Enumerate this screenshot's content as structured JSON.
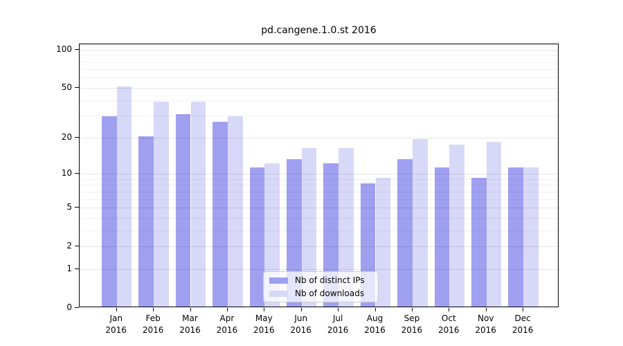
{
  "title": "pd.cangene.1.0.st 2016",
  "chart_data": {
    "type": "bar",
    "title": "pd.cangene.1.0.st 2016",
    "categories": [
      "Jan",
      "Feb",
      "Mar",
      "Apr",
      "May",
      "Jun",
      "Jul",
      "Aug",
      "Sep",
      "Oct",
      "Nov",
      "Dec"
    ],
    "category_year": "2016",
    "series": [
      {
        "name": "Nb of distinct IPs",
        "color": "#a0a0f0",
        "values": [
          29,
          20,
          30,
          26,
          11,
          13,
          12,
          8,
          13,
          11,
          9,
          11
        ]
      },
      {
        "name": "Nb of downloads",
        "color": "#d8d8f8",
        "values": [
          50,
          38,
          38,
          29,
          12,
          16,
          16,
          9,
          19,
          17,
          18,
          11
        ]
      }
    ],
    "xlabel": "",
    "ylabel": "",
    "yscale": "log1p",
    "ylim": [
      0,
      110
    ],
    "yticks": [
      0,
      1,
      2,
      5,
      10,
      20,
      50,
      100
    ],
    "minor_gridlines": [
      3,
      4,
      6,
      7,
      8,
      9,
      30,
      40,
      60,
      70,
      80,
      90
    ],
    "grid": "on",
    "legend_position": "lower center"
  },
  "legend": {
    "items": [
      {
        "label": "Nb of distinct IPs"
      },
      {
        "label": "Nb of downloads"
      }
    ]
  }
}
